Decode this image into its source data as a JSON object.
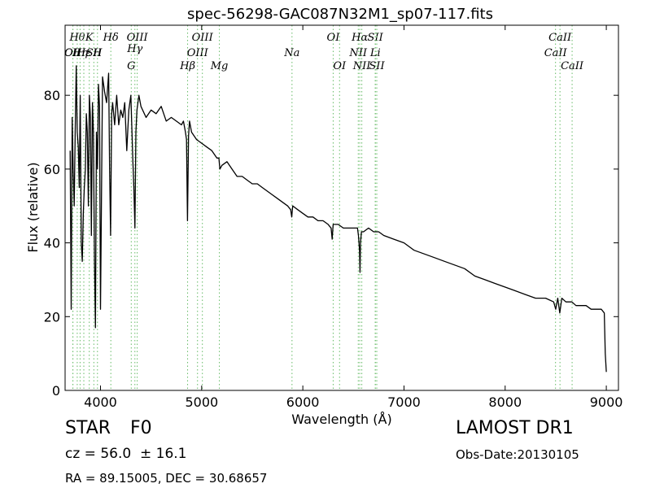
{
  "chart_data": {
    "type": "line",
    "title": "spec-56298-GAC087N32M1_sp07-117.fits",
    "xlabel": "Wavelength (Å)",
    "ylabel": "Flux (relative)",
    "xlim": [
      3650,
      9120
    ],
    "ylim": [
      0,
      99
    ],
    "xticks": [
      4000,
      5000,
      6000,
      7000,
      8000,
      9000
    ],
    "yticks": [
      0,
      20,
      40,
      60,
      80
    ],
    "series": [
      {
        "color": "#000000",
        "x": [
          3700,
          3710,
          3720,
          3730,
          3740,
          3750,
          3760,
          3770,
          3780,
          3790,
          3800,
          3810,
          3820,
          3830,
          3840,
          3850,
          3860,
          3870,
          3880,
          3890,
          3900,
          3910,
          3920,
          3930,
          3940,
          3950,
          3960,
          3970,
          3980,
          3990,
          4000,
          4020,
          4040,
          4060,
          4080,
          4090,
          4100,
          4110,
          4120,
          4140,
          4160,
          4180,
          4200,
          4220,
          4240,
          4260,
          4280,
          4300,
          4320,
          4330,
          4340,
          4350,
          4360,
          4380,
          4400,
          4450,
          4500,
          4550,
          4600,
          4650,
          4700,
          4750,
          4800,
          4820,
          4840,
          4850,
          4860,
          4870,
          4880,
          4900,
          4950,
          5000,
          5050,
          5100,
          5150,
          5170,
          5180,
          5200,
          5250,
          5300,
          5350,
          5400,
          5450,
          5500,
          5550,
          5600,
          5650,
          5700,
          5750,
          5800,
          5850,
          5880,
          5890,
          5900,
          5950,
          6000,
          6050,
          6100,
          6150,
          6200,
          6250,
          6280,
          6290,
          6300,
          6350,
          6400,
          6450,
          6500,
          6540,
          6550,
          6560,
          6565,
          6570,
          6580,
          6600,
          6650,
          6700,
          6750,
          6800,
          6900,
          7000,
          7100,
          7200,
          7300,
          7400,
          7500,
          7600,
          7700,
          7800,
          7900,
          8000,
          8100,
          8200,
          8300,
          8400,
          8480,
          8500,
          8520,
          8540,
          8560,
          8600,
          8650,
          8660,
          8700,
          8750,
          8800,
          8850,
          8900,
          8950,
          8980,
          8990,
          9000
        ],
        "y": [
          65,
          22,
          74,
          60,
          50,
          70,
          88,
          70,
          66,
          55,
          80,
          40,
          35,
          48,
          55,
          60,
          75,
          70,
          50,
          80,
          74,
          42,
          78,
          70,
          35,
          17,
          70,
          60,
          83,
          77,
          22,
          85,
          81,
          78,
          86,
          60,
          42,
          75,
          78,
          72,
          80,
          72,
          76,
          74,
          78,
          65,
          76,
          80,
          62,
          55,
          44,
          70,
          76,
          80,
          77,
          74,
          76,
          75,
          77,
          73,
          74,
          73,
          72,
          73,
          70,
          68,
          46,
          69,
          73,
          70,
          68,
          67,
          66,
          65,
          63,
          63,
          60,
          61,
          62,
          60,
          58,
          58,
          57,
          56,
          56,
          55,
          54,
          53,
          52,
          51,
          50,
          49,
          47,
          50,
          49,
          48,
          47,
          47,
          46,
          46,
          45,
          44,
          41,
          45,
          45,
          44,
          44,
          44,
          44,
          42,
          38,
          32,
          40,
          43,
          43,
          44,
          43,
          43,
          42,
          41,
          40,
          38,
          37,
          36,
          35,
          34,
          33,
          31,
          30,
          29,
          28,
          27,
          26,
          25,
          25,
          24,
          22,
          25,
          21,
          25,
          24,
          24,
          24,
          23,
          23,
          23,
          22,
          22,
          22,
          21,
          10,
          5
        ]
      }
    ],
    "line_markers": {
      "color": "#66bb66",
      "lines": [
        {
          "x": 3727,
          "label": "OII",
          "row": 1
        },
        {
          "x": 3727,
          "label": "OII",
          "row": 2
        },
        {
          "x": 3770,
          "label": "Hθ",
          "row": 0
        },
        {
          "x": 3798,
          "label": "Hη",
          "row": 2
        },
        {
          "x": 3835,
          "label": "Hε",
          "row": 1
        },
        {
          "x": 3889,
          "label": "K",
          "row": 0
        },
        {
          "x": 3934,
          "label": "SII",
          "row": 1
        },
        {
          "x": 3970,
          "label": "H",
          "row": 2
        },
        {
          "x": 4102,
          "label": "Hδ",
          "row": 0
        },
        {
          "x": 4304,
          "label": "G",
          "row": 3
        },
        {
          "x": 4340,
          "label": "Hγ",
          "row": 1.5
        },
        {
          "x": 4363,
          "label": "OIII",
          "row": 0
        },
        {
          "x": 4861,
          "label": "Hβ",
          "row": 3
        },
        {
          "x": 4959,
          "label": "OIII",
          "row": 2
        },
        {
          "x": 5007,
          "label": "OIII",
          "row": 0
        },
        {
          "x": 5175,
          "label": "Mg",
          "row": 3
        },
        {
          "x": 5893,
          "label": "Na",
          "row": 2
        },
        {
          "x": 6300,
          "label": "OI",
          "row": 0
        },
        {
          "x": 6363,
          "label": "OI",
          "row": 3
        },
        {
          "x": 6548,
          "label": "NII",
          "row": 2
        },
        {
          "x": 6563,
          "label": "Hα",
          "row": 0
        },
        {
          "x": 6583,
          "label": "NII",
          "row": 3
        },
        {
          "x": 6716,
          "label": "SII",
          "row": 0
        },
        {
          "x": 6717,
          "label": "Li",
          "row": 2
        },
        {
          "x": 6731,
          "label": "SII",
          "row": 3
        },
        {
          "x": 8498,
          "label": "CaII",
          "row": 2
        },
        {
          "x": 8542,
          "label": "CaII",
          "row": 0
        },
        {
          "x": 8662,
          "label": "CaII",
          "row": 3
        }
      ]
    }
  },
  "info": {
    "class_label": "STAR",
    "subclass_label": "F0",
    "redshift_text": "cz = 56.0  ± 16.1",
    "coords_text": "RA = 89.15005, DEC = 30.68657",
    "survey_text": "LAMOST DR1",
    "obs_date_text": "Obs-Date:20130105"
  }
}
